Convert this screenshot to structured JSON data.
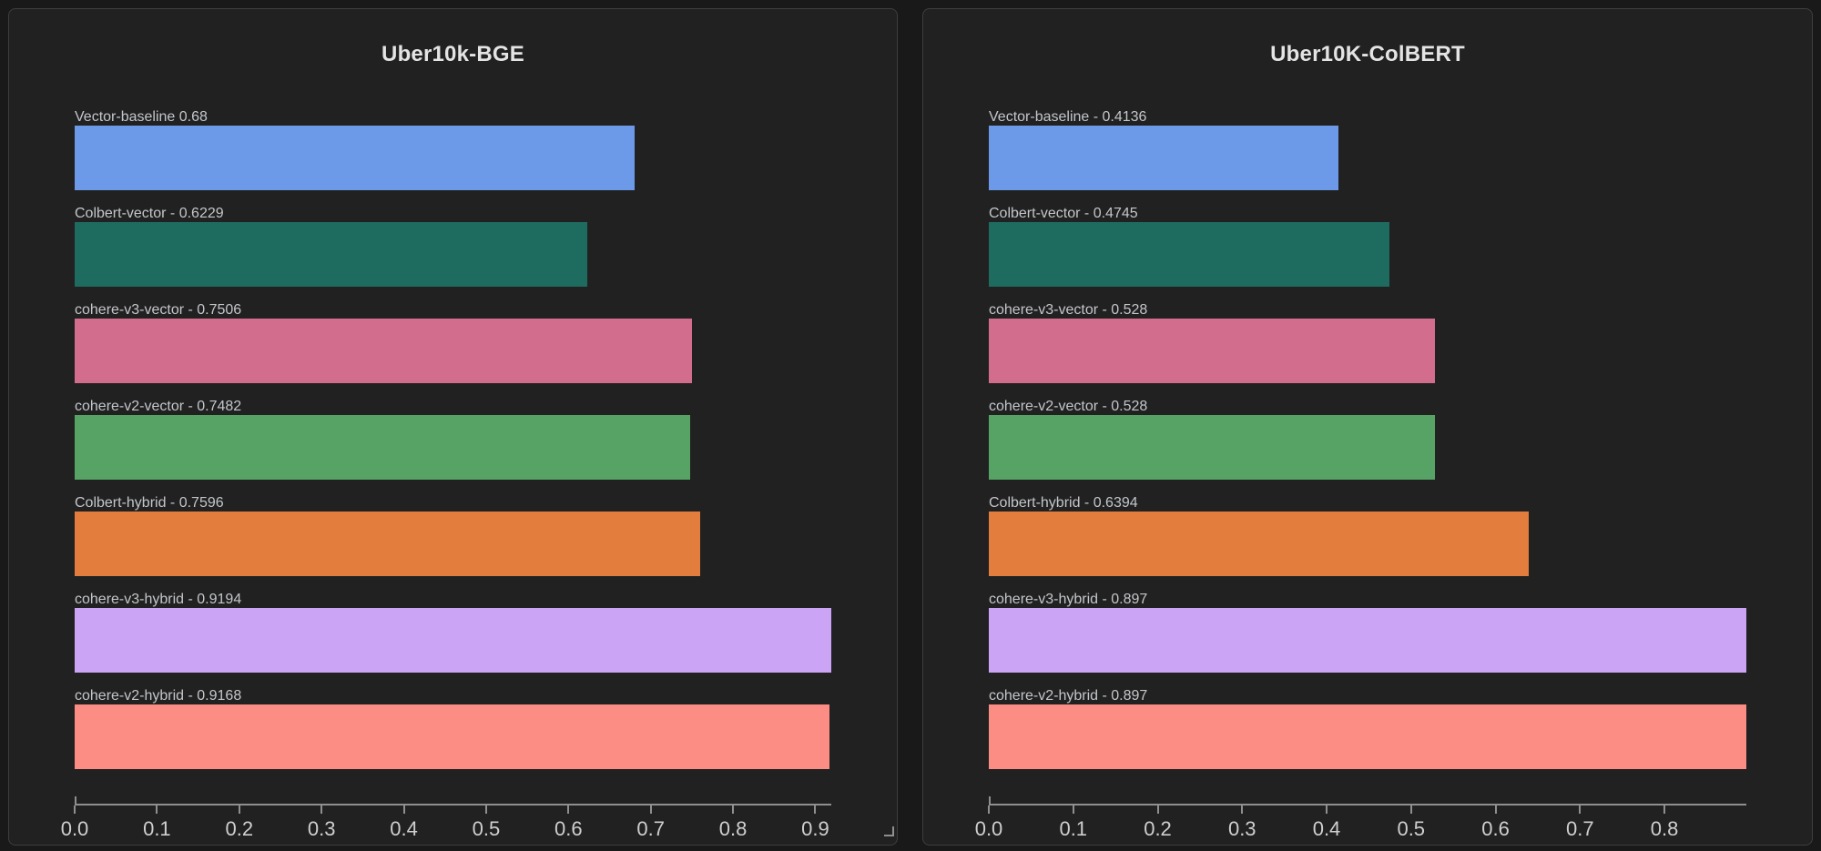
{
  "theme": {
    "background": "#191919",
    "panel_background": "#212121",
    "panel_border": "#3e3e3e",
    "title_color": "#e4e4e4",
    "bar_label_color": "#c3c6ca",
    "axis_color": "#8f8f8f",
    "tick_label_color": "#cfcfcf"
  },
  "chart_data": [
    {
      "type": "bar",
      "orientation": "horizontal",
      "title": "Uber10k-BGE",
      "categories": [
        "Vector-baseline",
        "Colbert-vector",
        "cohere-v3-vector",
        "cohere-v2-vector",
        "Colbert-hybrid",
        "cohere-v3-hybrid",
        "cohere-v2-hybrid"
      ],
      "values": [
        0.68,
        0.6229,
        0.7506,
        0.7482,
        0.7596,
        0.9194,
        0.9168
      ],
      "bar_labels": [
        "Vector-baseline 0.68",
        "Colbert-vector - 0.6229",
        "cohere-v3-vector - 0.7506",
        "cohere-v2-vector - 0.7482",
        "Colbert-hybrid - 0.7596",
        "cohere-v3-hybrid - 0.9194",
        "cohere-v2-hybrid - 0.9168"
      ],
      "bar_colors": [
        "#6c99e8",
        "#1e6b60",
        "#d26d8d",
        "#57a365",
        "#e27d3d",
        "#cba4f6",
        "#fb8d85"
      ],
      "xlim": [
        0,
        0.9194
      ],
      "x_tick_values": [
        0,
        0.1,
        0.2,
        0.3,
        0.4,
        0.5,
        0.6,
        0.7,
        0.8,
        0.9
      ],
      "x_tick_labels": [
        "0.0",
        "0.1",
        "0.2",
        "0.3",
        "0.4",
        "0.5",
        "0.6",
        "0.7",
        "0.8",
        "0.9"
      ],
      "grid": false,
      "legend": false
    },
    {
      "type": "bar",
      "orientation": "horizontal",
      "title": "Uber10K-ColBERT",
      "categories": [
        "Vector-baseline",
        "Colbert-vector",
        "cohere-v3-vector",
        "cohere-v2-vector",
        "Colbert-hybrid",
        "cohere-v3-hybrid",
        "cohere-v2-hybrid"
      ],
      "values": [
        0.4136,
        0.4745,
        0.528,
        0.528,
        0.6394,
        0.897,
        0.897
      ],
      "bar_labels": [
        "Vector-baseline - 0.4136",
        "Colbert-vector - 0.4745",
        "cohere-v3-vector - 0.528",
        "cohere-v2-vector - 0.528",
        "Colbert-hybrid - 0.6394",
        "cohere-v3-hybrid - 0.897",
        "cohere-v2-hybrid - 0.897"
      ],
      "bar_colors": [
        "#6c99e8",
        "#1e6b60",
        "#d26d8d",
        "#57a365",
        "#e27d3d",
        "#cba4f6",
        "#fb8d85"
      ],
      "xlim": [
        0,
        0.897
      ],
      "x_tick_values": [
        0,
        0.1,
        0.2,
        0.3,
        0.4,
        0.5,
        0.6,
        0.7,
        0.8
      ],
      "x_tick_labels": [
        "0.0",
        "0.1",
        "0.2",
        "0.3",
        "0.4",
        "0.5",
        "0.6",
        "0.7",
        "0.8"
      ],
      "grid": false,
      "legend": false
    }
  ]
}
